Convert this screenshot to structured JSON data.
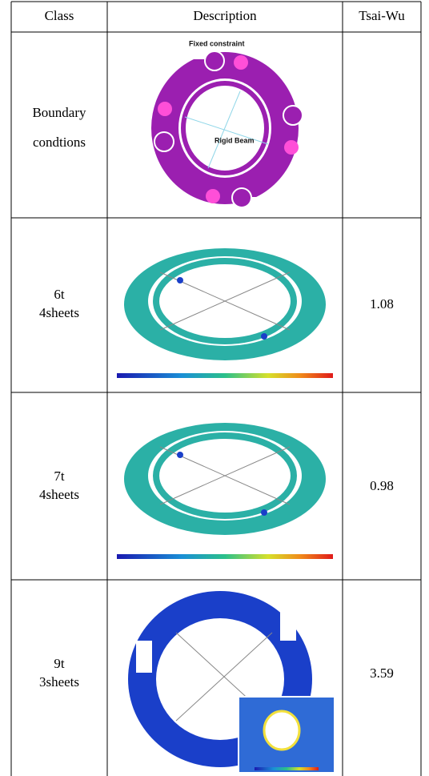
{
  "table": {
    "header": [
      "Class",
      "Description",
      "Tsai-Wu"
    ],
    "rows": [
      {
        "class": [
          "Boundary",
          "condtions"
        ],
        "annotations": [
          "Fixed constraint",
          "Rigid Beam"
        ]
      },
      {
        "class": [
          "6t",
          "4sheets"
        ],
        "tsai_wu": 1.08
      },
      {
        "class": [
          "7t",
          "4sheets"
        ],
        "tsai_wu": 0.98
      },
      {
        "class": [
          "9t",
          "3sheets"
        ],
        "tsai_wu": 3.59
      }
    ]
  }
}
